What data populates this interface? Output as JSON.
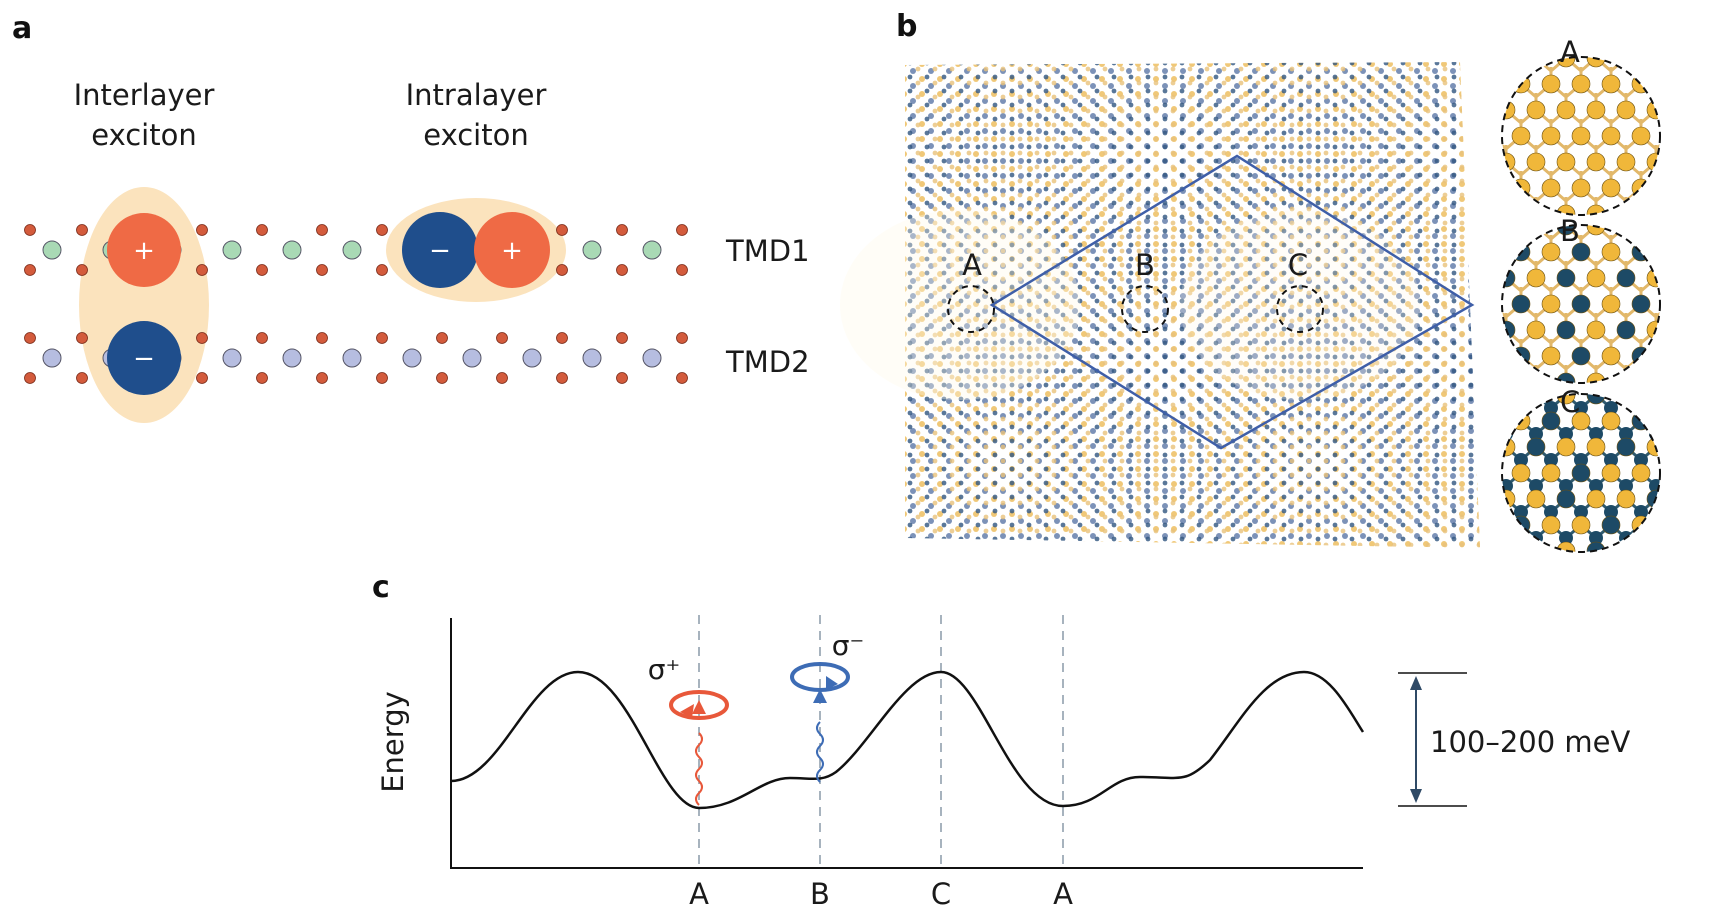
{
  "panels": {
    "a": "a",
    "b": "b",
    "c": "c"
  },
  "panel_a": {
    "interlayer_label": [
      "Interlayer",
      "exciton"
    ],
    "intralayer_label": [
      "Intralayer",
      "exciton"
    ],
    "layer1": "TMD1",
    "layer2": "TMD2",
    "plus": "+",
    "minus": "−"
  },
  "panel_b": {
    "moire_sites": [
      "A",
      "B",
      "C"
    ],
    "inset_labels": [
      "A",
      "B",
      "C"
    ]
  },
  "panel_c": {
    "ylabel": "Energy",
    "x_ticks": [
      "A",
      "B",
      "C",
      "A"
    ],
    "sigma_plus": "σ⁺",
    "sigma_minus": "σ⁻",
    "energy_scale": "100–200 meV"
  },
  "colors": {
    "hole": "#ef6a45",
    "electron": "#1f4e8c",
    "exciton_halo": "#fbe3bd",
    "chalcogen": "#d35b3c",
    "metal_tmd1": "#a9d9b5",
    "metal_tmd2": "#b6bde0",
    "gold_atom": "#f0b73a",
    "navy_atom": "#1d4a66",
    "moire_line": "#3f5fa8",
    "sigma_plus_color": "#e8583a",
    "sigma_minus_color": "#3d6cb5"
  }
}
